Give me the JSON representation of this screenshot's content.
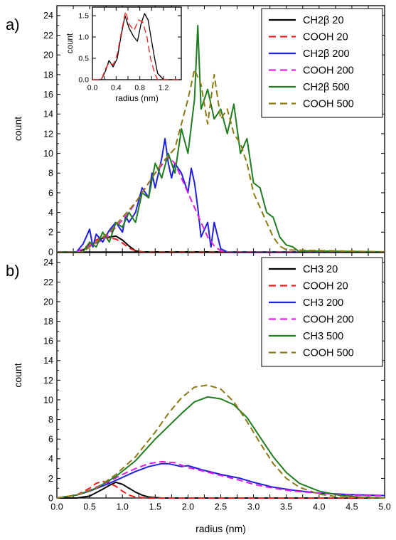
{
  "panels": {
    "a": {
      "label": "a)"
    },
    "b": {
      "label": "b)"
    }
  },
  "inset": {
    "title": ""
  },
  "chart_data": [
    {
      "id": "a",
      "type": "line",
      "title": "",
      "xlabel": "",
      "ylabel": "count",
      "xlim": [
        0,
        5
      ],
      "ylim": [
        0,
        25
      ],
      "yticks": [
        0,
        2,
        4,
        6,
        8,
        10,
        12,
        14,
        16,
        18,
        20,
        22,
        24
      ],
      "xticks": [],
      "legend_position": "top-right",
      "series": [
        {
          "name": "CH2β 20",
          "color": "#000000",
          "dash": "solid",
          "x": [
            0,
            0.3,
            0.4,
            0.5,
            0.6,
            0.7,
            0.8,
            0.9,
            1.0,
            1.1,
            1.2,
            1.3,
            5.0
          ],
          "y": [
            0,
            0,
            0.2,
            0.6,
            1.0,
            1.4,
            1.5,
            1.6,
            1.2,
            0.6,
            0.1,
            0,
            0
          ]
        },
        {
          "name": "COOH 20",
          "color": "#ee1c1c",
          "dash": "dash",
          "x": [
            0,
            0.3,
            0.4,
            0.5,
            0.6,
            0.7,
            0.8,
            0.9,
            1.0,
            1.1,
            1.2,
            1.3,
            5.0
          ],
          "y": [
            0,
            0,
            0.3,
            0.8,
            1.2,
            1.5,
            1.4,
            1.3,
            0.9,
            0.4,
            0.1,
            0,
            0
          ]
        },
        {
          "name": "CH2β 200",
          "color": "#1f1fe0",
          "dash": "solid",
          "x": [
            0,
            0.3,
            0.4,
            0.5,
            0.55,
            0.6,
            0.7,
            0.8,
            0.9,
            1.0,
            1.05,
            1.1,
            1.2,
            1.3,
            1.4,
            1.45,
            1.5,
            1.6,
            1.65,
            1.7,
            1.75,
            1.8,
            1.9,
            2.0,
            2.05,
            2.1,
            2.15,
            2.2,
            2.3,
            2.35,
            2.4,
            2.5,
            2.6,
            5.0
          ],
          "y": [
            0,
            0,
            0.8,
            2.3,
            0.5,
            1.8,
            1.0,
            2.2,
            3.0,
            2.0,
            3.6,
            3.0,
            4.0,
            6.5,
            5.5,
            8.0,
            6.5,
            9.5,
            11.5,
            9.0,
            7.5,
            9.0,
            8.0,
            6.0,
            8.5,
            7.0,
            4.5,
            1.5,
            3.0,
            0.5,
            3.0,
            0.3,
            0,
            0
          ]
        },
        {
          "name": "COOH 200",
          "color": "#e020e0",
          "dash": "dash",
          "x": [
            0,
            0.3,
            0.5,
            0.7,
            0.9,
            1.1,
            1.3,
            1.5,
            1.7,
            1.8,
            1.9,
            2.0,
            2.1,
            2.2,
            2.3,
            2.4,
            2.5,
            2.6,
            5.0
          ],
          "y": [
            0,
            0,
            0.6,
            1.2,
            2.5,
            4.0,
            6.0,
            8.0,
            9.6,
            9.0,
            7.5,
            6.0,
            4.5,
            3.0,
            1.5,
            0.6,
            0.1,
            0,
            0
          ]
        },
        {
          "name": "CH2β 500",
          "color": "#1e7d1e",
          "dash": "solid",
          "x": [
            0,
            0.4,
            0.5,
            0.6,
            0.7,
            0.8,
            0.9,
            1.0,
            1.1,
            1.2,
            1.3,
            1.4,
            1.5,
            1.6,
            1.7,
            1.8,
            1.9,
            2.0,
            2.1,
            2.15,
            2.2,
            2.3,
            2.4,
            2.5,
            2.6,
            2.7,
            2.8,
            2.9,
            3.0,
            3.1,
            3.2,
            3.3,
            3.4,
            3.5,
            3.6,
            3.7,
            3.8,
            5.0
          ],
          "y": [
            0,
            0,
            1.0,
            0.5,
            2.0,
            1.0,
            3.0,
            2.5,
            4.0,
            3.0,
            6.0,
            5.5,
            9.0,
            7.5,
            10.0,
            8.0,
            12.5,
            10.0,
            15.5,
            23.0,
            14.5,
            16.5,
            13.5,
            14.5,
            12.0,
            15.0,
            10.0,
            11.5,
            7.0,
            6.5,
            4.0,
            3.5,
            1.5,
            0.7,
            0.5,
            0,
            0.1,
            0
          ]
        },
        {
          "name": "COOH 500",
          "color": "#8a7a14",
          "dash": "dash",
          "x": [
            0,
            0.4,
            0.6,
            0.8,
            1.0,
            1.2,
            1.4,
            1.6,
            1.8,
            1.9,
            2.0,
            2.1,
            2.2,
            2.3,
            2.4,
            2.5,
            2.6,
            2.7,
            2.8,
            2.9,
            3.0,
            3.1,
            3.2,
            3.3,
            3.4,
            3.5,
            5.0
          ],
          "y": [
            0,
            0,
            1.0,
            2.0,
            3.5,
            5.0,
            7.0,
            9.0,
            10.5,
            13.0,
            15.5,
            18.5,
            17.0,
            13.0,
            18.0,
            13.5,
            14.5,
            12.0,
            11.0,
            9.0,
            6.0,
            4.5,
            3.0,
            1.5,
            0.6,
            0.2,
            0
          ]
        }
      ]
    },
    {
      "id": "a-inset",
      "type": "line",
      "title": "",
      "xlabel": "radius (nm)",
      "ylabel": "count",
      "xlim": [
        0,
        1.5
      ],
      "ylim": [
        0,
        1.7
      ],
      "xticks": [
        0.0,
        0.4,
        0.8,
        1.2
      ],
      "yticks": [
        0.0,
        0.5,
        1.0,
        1.5
      ],
      "series": [
        {
          "name": "",
          "color": "#000000",
          "dash": "solid",
          "x": [
            0,
            0.15,
            0.22,
            0.28,
            0.35,
            0.42,
            0.48,
            0.55,
            0.62,
            0.7,
            0.76,
            0.82,
            0.88,
            0.94,
            1.0,
            1.05,
            1.1,
            1.2,
            1.5
          ],
          "y": [
            0,
            0,
            0.2,
            0.45,
            0.3,
            0.5,
            1.0,
            1.5,
            1.2,
            1.0,
            0.9,
            1.3,
            1.55,
            1.4,
            0.9,
            0.5,
            0.15,
            0,
            0
          ]
        },
        {
          "name": "",
          "color": "#ee1c1c",
          "dash": "dash",
          "x": [
            0,
            0.15,
            0.22,
            0.28,
            0.35,
            0.42,
            0.5,
            0.56,
            0.62,
            0.7,
            0.78,
            0.85,
            0.92,
            0.98,
            1.05,
            1.1,
            1.5
          ],
          "y": [
            0,
            0,
            0.25,
            0.4,
            0.35,
            0.6,
            1.2,
            1.6,
            1.3,
            1.15,
            1.4,
            1.35,
            1.0,
            0.5,
            0.15,
            0,
            0
          ]
        }
      ]
    },
    {
      "id": "b",
      "type": "line",
      "title": "",
      "xlabel": "radius (nm)",
      "ylabel": "count",
      "xlim": [
        0,
        5
      ],
      "ylim": [
        0,
        25
      ],
      "xticks": [
        0.0,
        0.5,
        1.0,
        1.5,
        2.0,
        2.5,
        3.0,
        3.5,
        4.0,
        4.5,
        5.0
      ],
      "yticks": [
        0,
        2,
        4,
        6,
        8,
        10,
        12,
        14,
        16,
        18,
        20,
        22,
        24
      ],
      "legend_position": "top-right",
      "series": [
        {
          "name": "CH3 20",
          "color": "#000000",
          "dash": "solid",
          "x": [
            0,
            0.3,
            0.5,
            0.7,
            0.8,
            0.9,
            1.0,
            1.1,
            1.2,
            1.3,
            1.4,
            1.6,
            5.0
          ],
          "y": [
            0,
            0,
            0.2,
            0.9,
            1.3,
            1.6,
            1.4,
            1.0,
            0.6,
            0.3,
            0.1,
            0,
            0
          ]
        },
        {
          "name": "COOH 20",
          "color": "#ee1c1c",
          "dash": "dash",
          "x": [
            0,
            0.3,
            0.5,
            0.6,
            0.7,
            0.8,
            0.9,
            1.0,
            1.1,
            1.2,
            1.4,
            5.0
          ],
          "y": [
            0,
            0.3,
            1.0,
            1.5,
            1.7,
            1.5,
            1.2,
            0.7,
            0.3,
            0.1,
            0,
            0
          ]
        },
        {
          "name": "CH3 200",
          "color": "#1f1fe0",
          "dash": "solid",
          "x": [
            0,
            0.3,
            0.5,
            0.8,
            1.0,
            1.2,
            1.4,
            1.6,
            1.7,
            1.9,
            2.0,
            2.2,
            2.5,
            2.8,
            3.0,
            3.3,
            3.6,
            4.0,
            4.5,
            5.0
          ],
          "y": [
            0,
            0.3,
            0.7,
            1.5,
            2.1,
            2.7,
            3.2,
            3.5,
            3.5,
            3.2,
            3.3,
            2.9,
            2.4,
            2.0,
            1.6,
            1.1,
            0.8,
            0.5,
            0.35,
            0.25
          ]
        },
        {
          "name": "COOH 200",
          "color": "#e020e0",
          "dash": "dash",
          "x": [
            0,
            0.3,
            0.5,
            0.8,
            1.0,
            1.2,
            1.4,
            1.6,
            1.8,
            2.0,
            2.2,
            2.5,
            2.8,
            3.0,
            3.3,
            3.6,
            4.0,
            4.5,
            5.0
          ],
          "y": [
            0,
            0.3,
            0.8,
            1.7,
            2.4,
            3.0,
            3.5,
            3.7,
            3.6,
            3.1,
            2.8,
            2.3,
            1.8,
            1.4,
            1.0,
            0.7,
            0.5,
            0.3,
            0.2
          ]
        },
        {
          "name": "CH3 500",
          "color": "#1e7d1e",
          "dash": "solid",
          "x": [
            0,
            0.3,
            0.6,
            0.9,
            1.2,
            1.5,
            1.7,
            1.9,
            2.1,
            2.3,
            2.5,
            2.7,
            2.9,
            3.1,
            3.3,
            3.5,
            3.7,
            4.0,
            4.3,
            4.6,
            5.0
          ],
          "y": [
            0,
            0.3,
            1.0,
            2.2,
            3.8,
            6.0,
            7.3,
            8.6,
            9.8,
            10.3,
            10.1,
            9.5,
            8.2,
            6.2,
            4.2,
            2.6,
            1.5,
            0.7,
            0.3,
            0.1,
            0
          ]
        },
        {
          "name": "COOH 500",
          "color": "#8a7a14",
          "dash": "dash",
          "x": [
            0,
            0.3,
            0.6,
            0.9,
            1.2,
            1.5,
            1.7,
            1.9,
            2.1,
            2.3,
            2.5,
            2.7,
            2.9,
            3.1,
            3.3,
            3.5,
            3.7,
            4.0,
            4.3,
            5.0
          ],
          "y": [
            0,
            0.3,
            1.0,
            2.4,
            4.2,
            6.7,
            8.6,
            10.2,
            11.3,
            11.5,
            11.1,
            9.8,
            7.8,
            5.6,
            3.5,
            2.0,
            1.1,
            0.4,
            0.1,
            0
          ]
        }
      ]
    }
  ]
}
